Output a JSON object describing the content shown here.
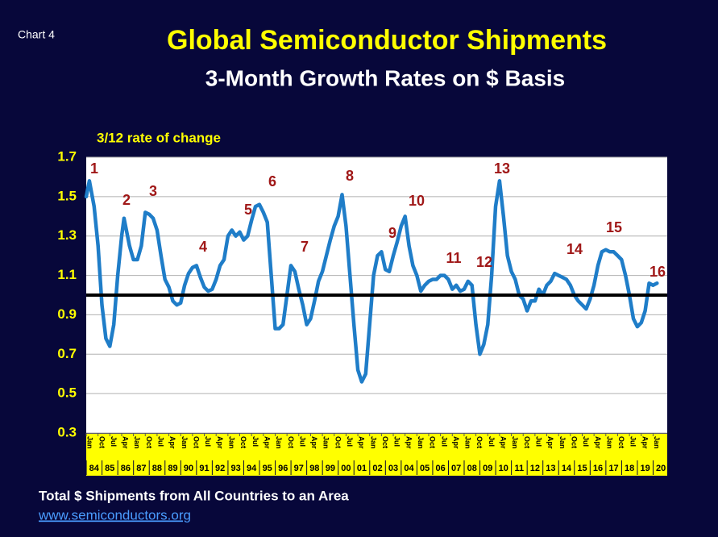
{
  "chart_label": "Chart 4",
  "footer": {
    "note": "Total $ Shipments from All Countries to an Area",
    "link": "www.semiconductors.org"
  },
  "chart_data": {
    "type": "line",
    "title": "Global Semiconductor Shipments",
    "subtitle": "3-Month Growth Rates on $ Basis",
    "y_label": "3/12 rate of change",
    "line_color": "#1f7dc8",
    "grid": true,
    "reference_line": 1,
    "annotations": [
      "1",
      "2",
      "3",
      "4",
      "5",
      "6",
      "7",
      "8",
      "9",
      "10",
      "11",
      "12",
      "13",
      "14",
      "15",
      "16"
    ],
    "ylim": [
      0.3,
      1.7
    ],
    "yticks": [
      0.3,
      0.5,
      0.7,
      0.9,
      1.1,
      1.3,
      1.5,
      1.7
    ],
    "xlim": [
      1984,
      2020.9
    ],
    "month_ticks": [
      {
        "value": 1984,
        "label": "Jan"
      },
      {
        "value": 1984.75,
        "label": "Oct"
      },
      {
        "value": 1985.5,
        "label": "Jul"
      },
      {
        "value": 1986.25,
        "label": "Apr"
      },
      {
        "value": 1987,
        "label": "Jan"
      },
      {
        "value": 1987.75,
        "label": "Oct"
      },
      {
        "value": 1988.5,
        "label": "Jul"
      },
      {
        "value": 1989.25,
        "label": "Apr"
      },
      {
        "value": 1990,
        "label": "Jan"
      },
      {
        "value": 1990.75,
        "label": "Oct"
      },
      {
        "value": 1991.5,
        "label": "Jul"
      },
      {
        "value": 1992.25,
        "label": "Apr"
      },
      {
        "value": 1993,
        "label": "Jan"
      },
      {
        "value": 1993.75,
        "label": "Oct"
      },
      {
        "value": 1994.5,
        "label": "Jul"
      },
      {
        "value": 1995.25,
        "label": "Apr"
      },
      {
        "value": 1996,
        "label": "Jan"
      },
      {
        "value": 1996.75,
        "label": "Oct"
      },
      {
        "value": 1997.5,
        "label": "Jul"
      },
      {
        "value": 1998.25,
        "label": "Apr"
      },
      {
        "value": 1999,
        "label": "Jan"
      },
      {
        "value": 1999.75,
        "label": "Oct"
      },
      {
        "value": 2000.5,
        "label": "Jul"
      },
      {
        "value": 2001.25,
        "label": "Apr"
      },
      {
        "value": 2002,
        "label": "Jan"
      },
      {
        "value": 2002.75,
        "label": "Oct"
      },
      {
        "value": 2003.5,
        "label": "Jul"
      },
      {
        "value": 2004.25,
        "label": "Apr"
      },
      {
        "value": 2005,
        "label": "Jan"
      },
      {
        "value": 2005.75,
        "label": "Oct"
      },
      {
        "value": 2006.5,
        "label": "Jul"
      },
      {
        "value": 2007.25,
        "label": "Apr"
      },
      {
        "value": 2008,
        "label": "Jan"
      },
      {
        "value": 2008.75,
        "label": "Oct"
      },
      {
        "value": 2009.5,
        "label": "Jul"
      },
      {
        "value": 2010.25,
        "label": "Apr"
      },
      {
        "value": 2011,
        "label": "Jan"
      },
      {
        "value": 2011.75,
        "label": "Oct"
      },
      {
        "value": 2012.5,
        "label": "Jul"
      },
      {
        "value": 2013.25,
        "label": "Apr"
      },
      {
        "value": 2014,
        "label": "Jan"
      },
      {
        "value": 2014.75,
        "label": "Oct"
      },
      {
        "value": 2015.5,
        "label": "Jul"
      },
      {
        "value": 2016.25,
        "label": "Apr"
      },
      {
        "value": 2017,
        "label": "Jan"
      },
      {
        "value": 2017.75,
        "label": "Oct"
      },
      {
        "value": 2018.5,
        "label": "Jul"
      },
      {
        "value": 2019.25,
        "label": "Apr"
      },
      {
        "value": 2020,
        "label": "Jan"
      }
    ],
    "year_ticks": [
      {
        "value": 1984.5,
        "label": "84"
      },
      {
        "value": 1985.5,
        "label": "85"
      },
      {
        "value": 1986.5,
        "label": "86"
      },
      {
        "value": 1987.5,
        "label": "87"
      },
      {
        "value": 1988.5,
        "label": "88"
      },
      {
        "value": 1989.5,
        "label": "89"
      },
      {
        "value": 1990.5,
        "label": "90"
      },
      {
        "value": 1991.5,
        "label": "91"
      },
      {
        "value": 1992.5,
        "label": "92"
      },
      {
        "value": 1993.5,
        "label": "93"
      },
      {
        "value": 1994.5,
        "label": "94"
      },
      {
        "value": 1995.5,
        "label": "95"
      },
      {
        "value": 1996.5,
        "label": "96"
      },
      {
        "value": 1997.5,
        "label": "97"
      },
      {
        "value": 1998.5,
        "label": "98"
      },
      {
        "value": 1999.5,
        "label": "99"
      },
      {
        "value": 2000.5,
        "label": "00"
      },
      {
        "value": 2001.5,
        "label": "01"
      },
      {
        "value": 2002.5,
        "label": "02"
      },
      {
        "value": 2003.5,
        "label": "03"
      },
      {
        "value": 2004.5,
        "label": "04"
      },
      {
        "value": 2005.5,
        "label": "05"
      },
      {
        "value": 2006.5,
        "label": "06"
      },
      {
        "value": 2007.5,
        "label": "07"
      },
      {
        "value": 2008.5,
        "label": "08"
      },
      {
        "value": 2009.5,
        "label": "09"
      },
      {
        "value": 2010.5,
        "label": "10"
      },
      {
        "value": 2011.5,
        "label": "11"
      },
      {
        "value": 2012.5,
        "label": "12"
      },
      {
        "value": 2013.5,
        "label": "13"
      },
      {
        "value": 2014.5,
        "label": "14"
      },
      {
        "value": 2015.5,
        "label": "15"
      },
      {
        "value": 2016.5,
        "label": "16"
      },
      {
        "value": 2017.5,
        "label": "17"
      },
      {
        "value": 2018.5,
        "label": "18"
      },
      {
        "value": 2019.5,
        "label": "19"
      },
      {
        "value": 2020.5,
        "label": "20"
      }
    ],
    "x": [
      1984,
      1984.2,
      1984.5,
      1984.75,
      1985,
      1985.25,
      1985.5,
      1985.75,
      1986,
      1986.25,
      1986.4,
      1986.75,
      1987,
      1987.25,
      1987.5,
      1987.75,
      1988,
      1988.25,
      1988.5,
      1988.75,
      1989,
      1989.25,
      1989.5,
      1989.75,
      1990,
      1990.25,
      1990.5,
      1990.75,
      1991,
      1991.25,
      1991.5,
      1991.75,
      1992,
      1992.25,
      1992.5,
      1992.75,
      1993,
      1993.25,
      1993.5,
      1993.75,
      1994,
      1994.25,
      1994.5,
      1994.75,
      1995,
      1995.25,
      1995.5,
      1995.75,
      1996,
      1996.25,
      1996.5,
      1996.75,
      1997,
      1997.25,
      1997.5,
      1997.75,
      1998,
      1998.25,
      1998.5,
      1998.75,
      1999,
      1999.25,
      1999.5,
      1999.75,
      2000,
      2000.25,
      2000.5,
      2000.75,
      2001,
      2001.25,
      2001.5,
      2001.75,
      2002,
      2002.25,
      2002.5,
      2002.75,
      2003,
      2003.25,
      2003.5,
      2003.75,
      2004,
      2004.25,
      2004.5,
      2004.75,
      2005,
      2005.25,
      2005.5,
      2005.75,
      2006,
      2006.25,
      2006.5,
      2006.75,
      2007,
      2007.25,
      2007.5,
      2007.75,
      2008,
      2008.25,
      2008.5,
      2008.75,
      2009,
      2009.25,
      2009.5,
      2009.75,
      2010,
      2010.25,
      2010.5,
      2010.75,
      2011,
      2011.25,
      2011.5,
      2011.75,
      2012,
      2012.25,
      2012.5,
      2012.75,
      2013,
      2013.25,
      2013.5,
      2013.75,
      2014,
      2014.25,
      2014.5,
      2014.75,
      2015,
      2015.25,
      2015.5,
      2015.75,
      2016,
      2016.25,
      2016.5,
      2016.75,
      2017,
      2017.25,
      2017.5,
      2017.75,
      2018,
      2018.25,
      2018.5,
      2018.75,
      2019,
      2019.25,
      2019.5,
      2019.75,
      2020,
      2020.25
    ],
    "values": [
      1.5,
      1.58,
      1.45,
      1.25,
      0.95,
      0.78,
      0.74,
      0.85,
      1.1,
      1.3,
      1.39,
      1.25,
      1.18,
      1.18,
      1.25,
      1.42,
      1.41,
      1.39,
      1.33,
      1.2,
      1.08,
      1.04,
      0.97,
      0.95,
      0.96,
      1.05,
      1.11,
      1.14,
      1.15,
      1.09,
      1.04,
      1.02,
      1.03,
      1.08,
      1.15,
      1.18,
      1.3,
      1.33,
      1.3,
      1.32,
      1.28,
      1.3,
      1.38,
      1.45,
      1.46,
      1.42,
      1.37,
      1.1,
      0.83,
      0.83,
      0.85,
      1.0,
      1.15,
      1.12,
      1.03,
      0.95,
      0.85,
      0.88,
      0.97,
      1.07,
      1.12,
      1.2,
      1.28,
      1.35,
      1.4,
      1.51,
      1.35,
      1.1,
      0.85,
      0.62,
      0.56,
      0.6,
      0.85,
      1.1,
      1.2,
      1.22,
      1.13,
      1.12,
      1.2,
      1.27,
      1.35,
      1.4,
      1.25,
      1.15,
      1.1,
      1.02,
      1.05,
      1.07,
      1.08,
      1.08,
      1.1,
      1.1,
      1.08,
      1.03,
      1.05,
      1.02,
      1.03,
      1.07,
      1.05,
      0.85,
      0.7,
      0.75,
      0.85,
      1.1,
      1.45,
      1.58,
      1.4,
      1.2,
      1.12,
      1.08,
      1.0,
      0.98,
      0.92,
      0.97,
      0.97,
      1.03,
      1.0,
      1.05,
      1.07,
      1.11,
      1.1,
      1.09,
      1.08,
      1.05,
      1.0,
      0.97,
      0.95,
      0.93,
      0.98,
      1.05,
      1.15,
      1.22,
      1.23,
      1.22,
      1.22,
      1.2,
      1.18,
      1.1,
      1.0,
      0.88,
      0.84,
      0.86,
      0.92,
      1.06,
      1.05,
      1.06
    ]
  }
}
